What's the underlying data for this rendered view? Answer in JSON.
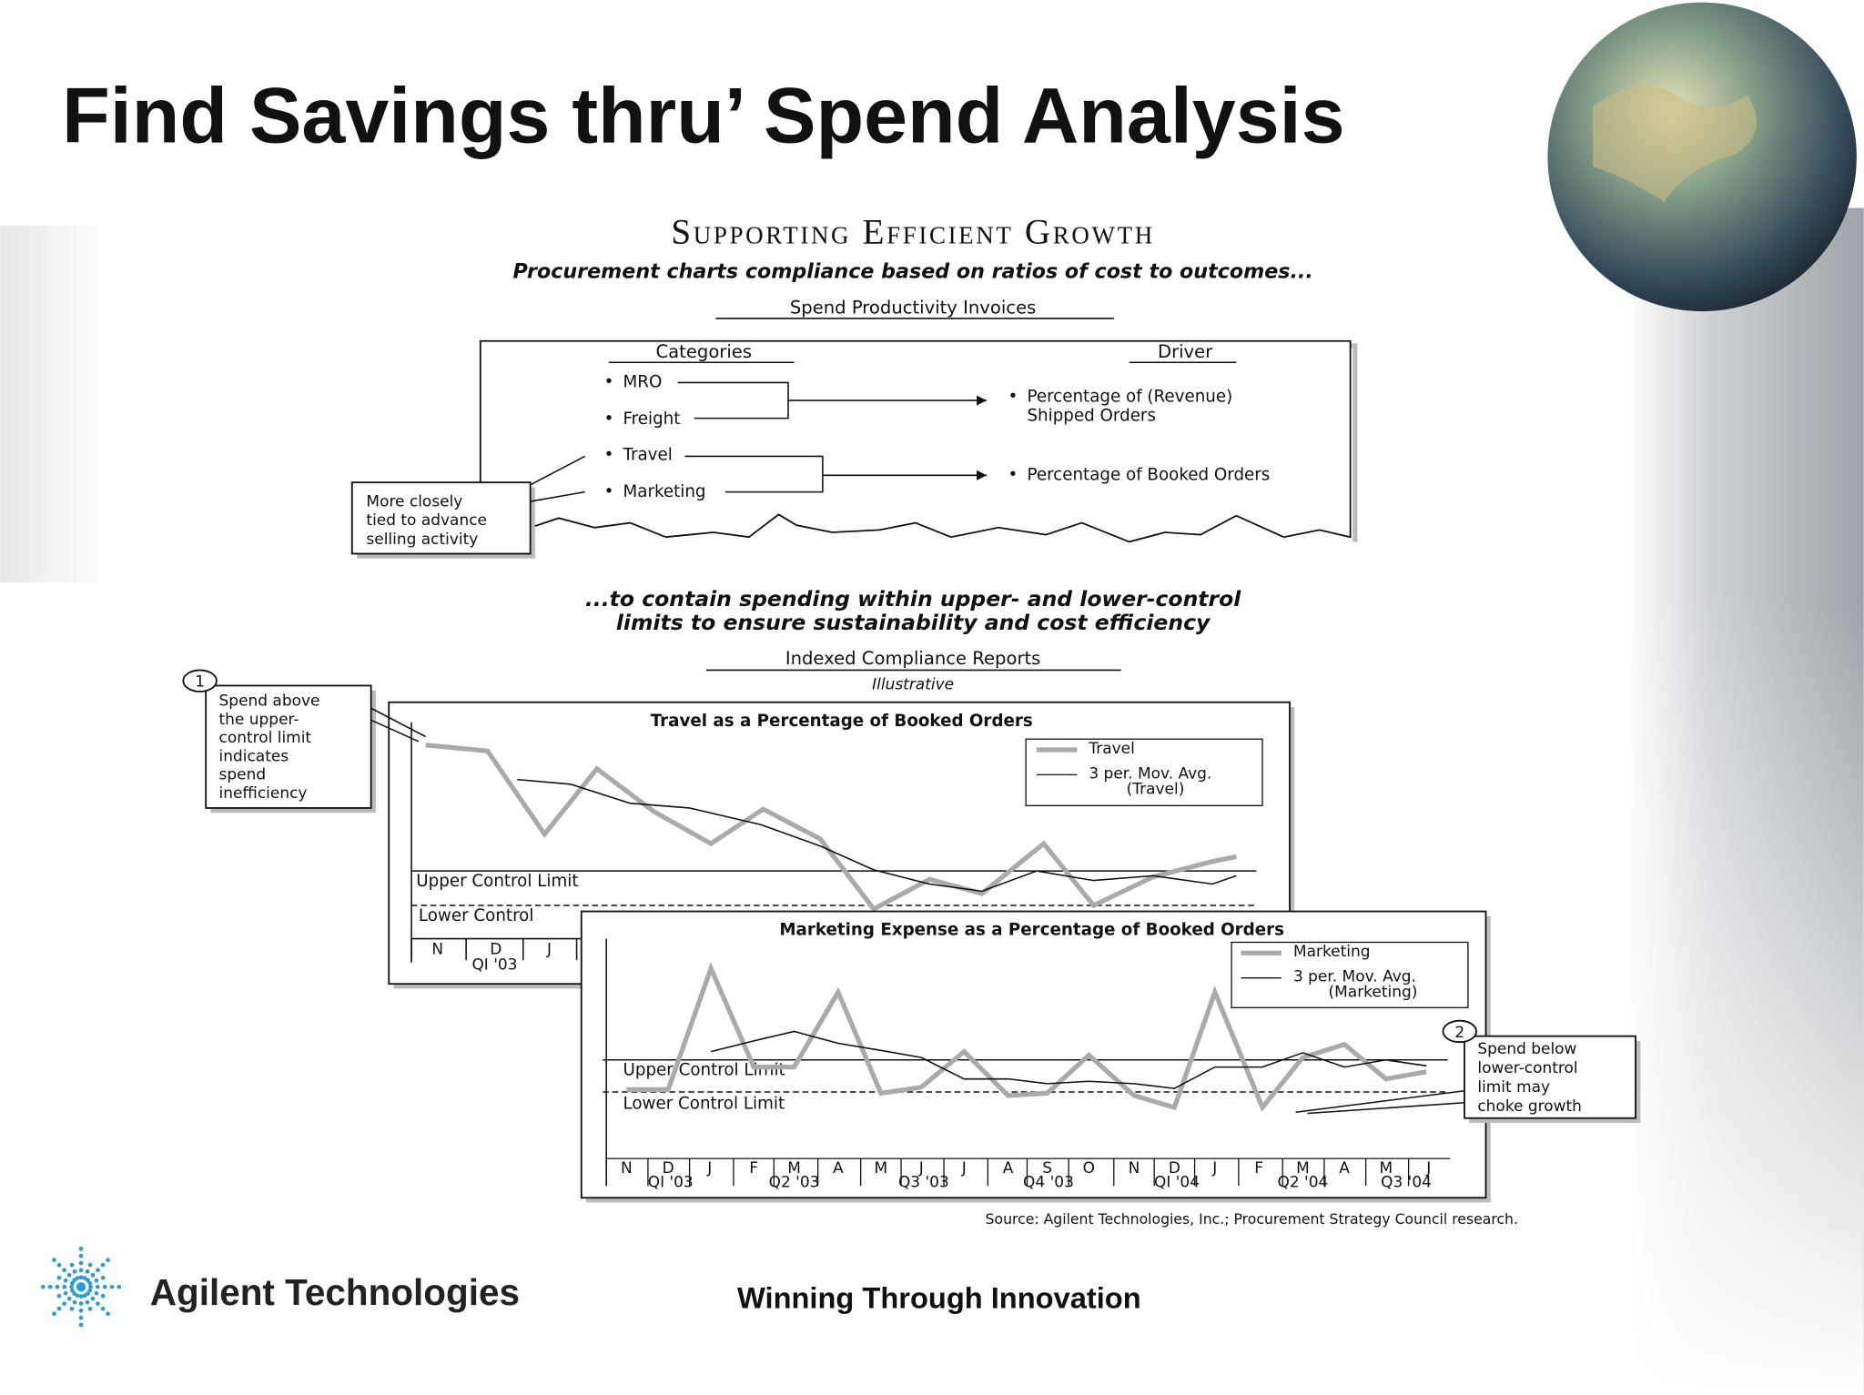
{
  "header": {
    "title": "Find Savings thru’ Spend Analysis"
  },
  "figure": {
    "title": "Supporting Efficient Growth",
    "subtitle": "Procurement charts compliance based on ratios of cost to outcomes...",
    "invoices": {
      "title": "Spend Productivity Invoices",
      "categories_header": "Categories",
      "driver_header": "Driver",
      "categories": [
        "MRO",
        "Freight",
        "Travel",
        "Marketing"
      ],
      "drivers": [
        [
          "Percentage of (Revenue)",
          "Shipped Orders"
        ],
        [
          "Percentage of Booked Orders"
        ]
      ],
      "callout": [
        "More closely",
        "tied to advance",
        "selling activity"
      ]
    },
    "caption": [
      "...to contain spending within upper- and lower-control",
      "limits to ensure sustainability and cost efficiency"
    ],
    "reports": {
      "title": "Indexed Compliance Reports",
      "note": "Illustrative",
      "travel_chart": {
        "title": "Travel as a Percentage of Booked Orders",
        "legend": [
          [
            "Travel"
          ],
          [
            "3 per. Mov. Avg.",
            "(Travel)"
          ]
        ],
        "upper_limit": "Upper Control Limit",
        "lower_limit": "Lower Control",
        "months": [
          "N",
          "D",
          "J"
        ],
        "quarters": [
          "QI '03"
        ]
      },
      "marketing_chart": {
        "title": "Marketing Expense as a Percentage of Booked Orders",
        "legend": [
          [
            "Marketing"
          ],
          [
            "3 per. Mov. Avg.",
            "(Marketing)"
          ]
        ],
        "upper_limit": "Upper Control Limit",
        "lower_limit": "Lower Control Limit",
        "months": [
          "N",
          "D",
          "J",
          "F",
          "M",
          "A",
          "M",
          "J",
          "J",
          "A",
          "S",
          "O",
          "N",
          "D",
          "J",
          "F",
          "M",
          "A",
          "M",
          "J"
        ],
        "quarters": [
          "QI '03",
          "Q2 '03",
          "Q3 '03",
          "Q4 '03",
          "QI '04",
          "Q2 '04",
          "Q3 '04"
        ]
      }
    },
    "callouts": [
      {
        "number": "1",
        "lines": [
          "Spend above",
          "the upper-",
          "control limit",
          "indicates",
          "spend",
          "inefficiency"
        ]
      },
      {
        "number": "2",
        "lines": [
          "Spend below",
          "lower-control",
          "limit may",
          "choke growth"
        ]
      }
    ],
    "source": "Source: Agilent Technologies, Inc.; Procurement Strategy Council research."
  },
  "footer": {
    "brand": "Agilent Technologies",
    "tagline": "Winning Through Innovation"
  }
}
